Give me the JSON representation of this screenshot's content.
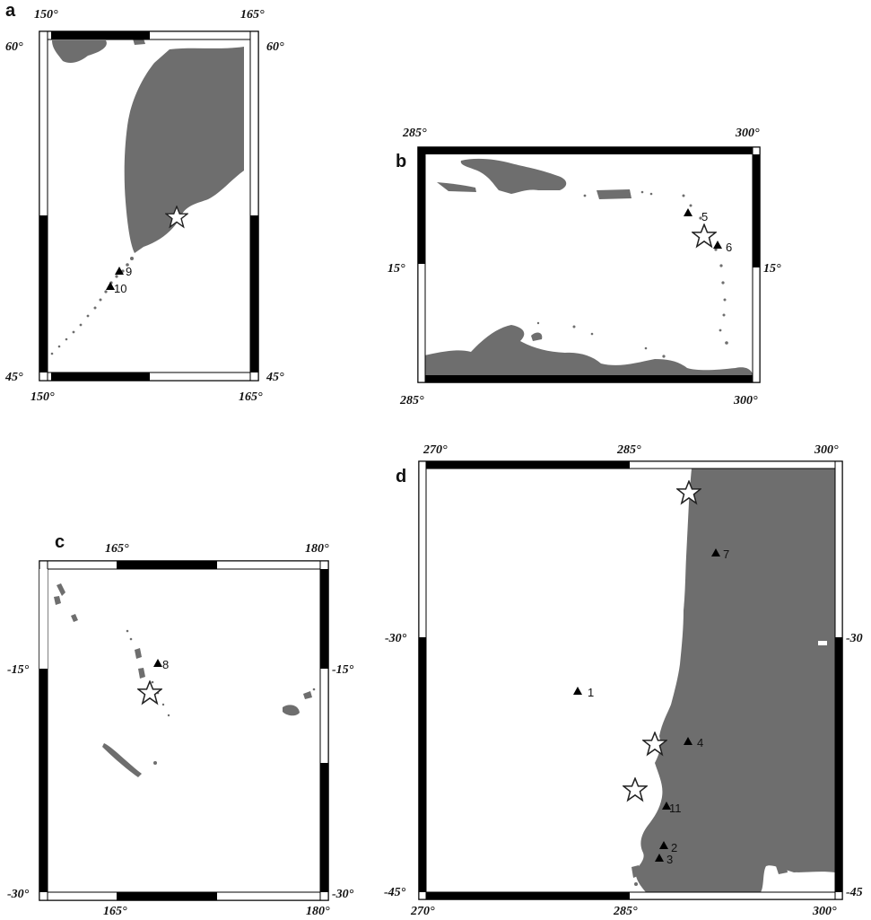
{
  "panels": [
    {
      "label": "a",
      "ticks": {
        "top": [
          "150°",
          "165°"
        ],
        "bottom": [
          "150°",
          "165°"
        ],
        "left": [
          "60°",
          "45°"
        ],
        "right": [
          "60°",
          "45°"
        ]
      },
      "stations": [
        "9",
        "10"
      ],
      "stars": 1
    },
    {
      "label": "b",
      "ticks": {
        "top": [
          "285°",
          "300°"
        ],
        "bottom": [
          "285°",
          "300°"
        ],
        "left": [
          "15°"
        ],
        "right": [
          "15°"
        ]
      },
      "stations": [
        "5",
        "6"
      ],
      "stars": 1
    },
    {
      "label": "c",
      "ticks": {
        "top": [
          "165°",
          "180°"
        ],
        "bottom": [
          "165°",
          "180°"
        ],
        "left": [
          "-15°",
          "-30°"
        ],
        "right": [
          "-15°",
          "-30°"
        ]
      },
      "stations": [
        "8"
      ],
      "stars": 1
    },
    {
      "label": "d",
      "ticks": {
        "top": [
          "270°",
          "285°",
          "300°"
        ],
        "bottom": [
          "270°",
          "285°",
          "300°"
        ],
        "left": [
          "-30°",
          "-45°"
        ],
        "right": [
          "-30",
          "-45"
        ]
      },
      "stations": [
        "7",
        "1",
        "4",
        "11",
        "2",
        "3"
      ],
      "stars": 3
    }
  ],
  "colors": {
    "land": "#6e6e6e",
    "frame": "#000000",
    "station": "#000000"
  }
}
